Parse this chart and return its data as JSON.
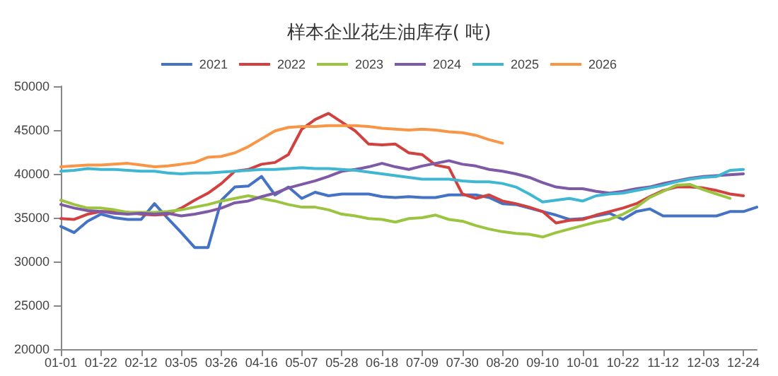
{
  "chart_data": {
    "type": "line",
    "title": "样本企业花生油库存( 吨)",
    "legend": "top",
    "grid": false,
    "marker": "none",
    "categories": [
      "01-01",
      null,
      null,
      "01-22",
      null,
      null,
      "02-12",
      null,
      null,
      "03-05",
      null,
      null,
      "03-26",
      null,
      null,
      "04-16",
      null,
      null,
      "05-07",
      null,
      null,
      "05-28",
      null,
      null,
      "06-18",
      null,
      null,
      "07-09",
      null,
      null,
      "07-30",
      null,
      null,
      "08-20",
      null,
      null,
      "09-10",
      null,
      null,
      "10-01",
      null,
      null,
      "10-22",
      null,
      null,
      "11-12",
      null,
      null,
      "12-03",
      null,
      null,
      "12-24",
      null
    ],
    "ylim": [
      20000,
      50000
    ],
    "yticks": [
      20000,
      25000,
      30000,
      35000,
      40000,
      45000,
      50000
    ],
    "series": [
      {
        "name": "2021",
        "color": "#4472c4",
        "values": [
          34000,
          33300,
          34600,
          35400,
          35000,
          34800,
          34800,
          36600,
          34900,
          33300,
          31600,
          31600,
          37000,
          38500,
          38600,
          39700,
          37600,
          38500,
          37200,
          37900,
          37500,
          37700,
          37700,
          37700,
          37400,
          37300,
          37400,
          37300,
          37300,
          37600,
          37600,
          37600,
          37300,
          36600,
          36500,
          36100,
          35700,
          35300,
          34800,
          34900,
          35200,
          35500,
          34800,
          35700,
          36000,
          35200,
          35200,
          35200,
          35200,
          35200,
          35700,
          35700,
          36200
        ]
      },
      {
        "name": "2022",
        "color": "#d0413f",
        "values": [
          34900,
          34800,
          35400,
          35700,
          35700,
          35600,
          35400,
          35300,
          35400,
          36100,
          37000,
          37800,
          38900,
          40300,
          40500,
          41100,
          41300,
          42200,
          45100,
          46200,
          46900,
          45900,
          44900,
          43400,
          43300,
          43400,
          42400,
          42200,
          41000,
          40700,
          37700,
          37200,
          37600,
          36900,
          36600,
          36200,
          35700,
          34400,
          34700,
          34800,
          35300,
          35700,
          36100,
          36600,
          37400,
          38100,
          38500,
          38500,
          38400,
          38100,
          37700,
          37500,
          null
        ]
      },
      {
        "name": "2023",
        "color": "#9bc540",
        "values": [
          37000,
          36500,
          36100,
          36100,
          35900,
          35600,
          35600,
          35600,
          35700,
          35900,
          36200,
          36500,
          36900,
          37200,
          37500,
          37200,
          36900,
          36500,
          36200,
          36200,
          35900,
          35400,
          35200,
          34900,
          34800,
          34500,
          34900,
          35000,
          35300,
          34800,
          34600,
          34100,
          33700,
          33400,
          33200,
          33100,
          32800,
          33300,
          33700,
          34100,
          34500,
          34800,
          35400,
          36200,
          37300,
          38000,
          38700,
          38800,
          38200,
          37700,
          37200,
          null,
          null
        ]
      },
      {
        "name": "2024",
        "color": "#7e5aa6",
        "values": [
          36500,
          36100,
          35800,
          35700,
          35500,
          35400,
          35500,
          35400,
          35500,
          35200,
          35400,
          35700,
          36100,
          36700,
          36900,
          37400,
          37800,
          38400,
          38800,
          39200,
          39700,
          40300,
          40500,
          40800,
          41200,
          40800,
          40500,
          40900,
          41200,
          41500,
          41100,
          40900,
          40500,
          40300,
          40000,
          39600,
          39000,
          38500,
          38300,
          38300,
          38000,
          37800,
          38000,
          38300,
          38500,
          38900,
          39200,
          39500,
          39700,
          39800,
          39900,
          40000,
          null
        ]
      },
      {
        "name": "2025",
        "color": "#3fb6d2",
        "values": [
          40300,
          40400,
          40600,
          40500,
          40500,
          40400,
          40300,
          40300,
          40100,
          40000,
          40100,
          40100,
          40200,
          40300,
          40400,
          40500,
          40500,
          40600,
          40700,
          40600,
          40600,
          40500,
          40400,
          40200,
          40000,
          39800,
          39600,
          39400,
          39400,
          39400,
          39200,
          39100,
          39100,
          38900,
          38500,
          37700,
          36800,
          37000,
          37200,
          36900,
          37500,
          37700,
          37800,
          38100,
          38400,
          38700,
          39100,
          39400,
          39600,
          39700,
          40400,
          40500,
          null
        ]
      },
      {
        "name": "2026",
        "color": "#f79646",
        "values": [
          40800,
          40900,
          41000,
          41000,
          41100,
          41200,
          41000,
          40800,
          40900,
          41100,
          41300,
          41900,
          42000,
          42400,
          43100,
          44000,
          44900,
          45300,
          45400,
          45400,
          45500,
          45500,
          45500,
          45400,
          45200,
          45100,
          45000,
          45100,
          45000,
          44800,
          44700,
          44400,
          43900,
          43500,
          null,
          null,
          null,
          null,
          null,
          null,
          null,
          null,
          null,
          null,
          null,
          null,
          null,
          null,
          null,
          null,
          null,
          null,
          null
        ]
      }
    ]
  }
}
